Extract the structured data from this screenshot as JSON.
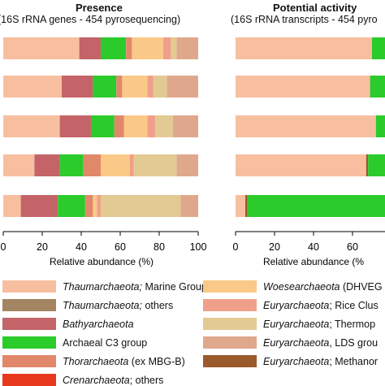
{
  "panels": [
    {
      "title": "Presence",
      "subtitle": "(16S rRNA genes - 454 pyrosequencing)",
      "xlabel": "Relative abundance (%)",
      "ticks": [
        "0",
        "20",
        "40",
        "60",
        "80",
        "100"
      ]
    },
    {
      "title": "Potential activity",
      "subtitle": "(16S rRNA transcripts - 454 pyro",
      "xlabel": "Relative abundance (%",
      "ticks": [
        "0",
        "20",
        "40",
        "60"
      ]
    }
  ],
  "legend": [
    {
      "italic": "Thaumarchaeota;",
      "rest": " Marine Group I",
      "color": "#F7BFA0"
    },
    {
      "italic": "Thaumarchaeota;",
      "rest": " others",
      "color": "#A38562"
    },
    {
      "italic": "Bathyarchaeota",
      "rest": "",
      "color": "#C46468"
    },
    {
      "italic": "",
      "rest": "Archaeal C3 group",
      "color": "#2CCB2C"
    },
    {
      "italic": "Thorarchaeota",
      "rest": " (ex MBG-B)",
      "color": "#E2886A"
    },
    {
      "italic": "Crenarchaeota",
      "rest": "; others",
      "color": "#E8391E"
    },
    {
      "italic": "Woesearchaeota",
      "rest": " (DHVEG",
      "color": "#FBC987"
    },
    {
      "italic": "Euryarchaeota",
      "rest": "; Rice Clus",
      "color": "#F0A08A"
    },
    {
      "italic": "Euryarchaeota",
      "rest": "; Thermop",
      "color": "#E2CA92"
    },
    {
      "italic": "Euryarchaeota",
      "rest": ", LDS grou",
      "color": "#DFA88C"
    },
    {
      "italic": "Euryarchaeota",
      "rest": "; Methanor",
      "color": "#9A5A2B"
    }
  ],
  "chart_data": [
    {
      "type": "bar",
      "orientation": "horizontal",
      "stacked": true,
      "title": "Presence",
      "subtitle": "(16S rRNA genes - 454 pyrosequencing)",
      "xlabel": "Relative abundance (%)",
      "xlim": [
        0,
        100
      ],
      "series": [
        {
          "name": "Thaumarchaeota; Marine Group I",
          "color": "#F7BFA0",
          "values": [
            39,
            30,
            29,
            16,
            9
          ]
        },
        {
          "name": "Thaumarchaeota; others",
          "color": "#A38562",
          "values": [
            0,
            0,
            0,
            0,
            0
          ]
        },
        {
          "name": "Bathyarchaeota",
          "color": "#C46468",
          "values": [
            11,
            16,
            16,
            13,
            19
          ]
        },
        {
          "name": "Archaeal C3 group",
          "color": "#2CCB2C",
          "values": [
            13,
            12,
            12,
            12,
            14
          ]
        },
        {
          "name": "Thorarchaeota (ex MBG-B)",
          "color": "#E2886A",
          "values": [
            3,
            3,
            5,
            9,
            4
          ]
        },
        {
          "name": "Crenarchaeota; others",
          "color": "#E8391E",
          "values": [
            0,
            0,
            0,
            0,
            0
          ]
        },
        {
          "name": "Woesearchaeota (DHVEG",
          "color": "#FBC987",
          "values": [
            16,
            13,
            12,
            15,
            2
          ]
        },
        {
          "name": "Euryarchaeota; Rice Clus",
          "color": "#F0A08A",
          "values": [
            4,
            3,
            4,
            2,
            2
          ]
        },
        {
          "name": "Euryarchaeota; Thermop",
          "color": "#E2CA92",
          "values": [
            3,
            7,
            9,
            22,
            41
          ]
        },
        {
          "name": "Euryarchaeota, LDS grou",
          "color": "#DFA88C",
          "values": [
            11,
            16,
            13,
            11,
            9
          ]
        }
      ]
    },
    {
      "type": "bar",
      "orientation": "horizontal",
      "stacked": true,
      "title": "Potential activity",
      "subtitle": "(16S rRNA transcripts - 454 pyro",
      "xlabel": "Relative abundance (%",
      "xlim": [
        0,
        100
      ],
      "series": [
        {
          "name": "Thaumarchaeota; Marine Group I",
          "color": "#F7BFA0",
          "values": [
            70,
            69,
            72,
            67,
            5
          ]
        },
        {
          "name": "Euryarchaeota; Methanor",
          "color": "#9A5A2B",
          "values": [
            0,
            0,
            0,
            1,
            1
          ]
        },
        {
          "name": "Archaeal C3 group",
          "color": "#2CCB2C",
          "values": [
            30,
            31,
            28,
            32,
            94
          ]
        }
      ]
    }
  ]
}
